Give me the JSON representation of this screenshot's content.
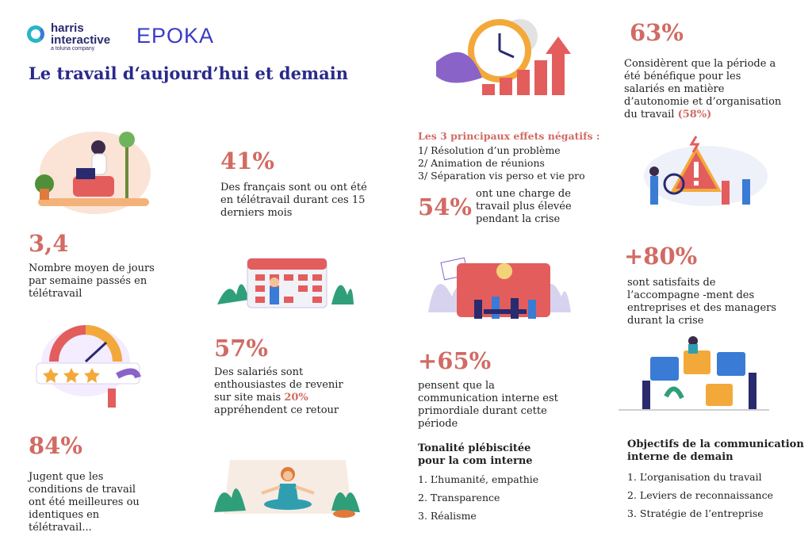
{
  "logos": {
    "harris_name_line1": "harris",
    "harris_name_line2": "interactive",
    "harris_tagline": "a toluna company",
    "epoka": "EPOKA"
  },
  "title": "Le travail d‘aujourd’hui et demain",
  "stats": {
    "remote_share": {
      "value": "41%",
      "text": "Des français sont ou ont été en télétravail durant ces 15 derniers mois"
    },
    "days_per_week": {
      "value": "3,4",
      "text": "Nombre moyen de jours par semaine passés en télétravail"
    },
    "return_enthusiasm": {
      "value": "57%",
      "text_a": "Des salariés sont enthousiastes de revenir sur site mais ",
      "highlight": "20%",
      "text_b": " appréhendent ce retour"
    },
    "conditions": {
      "value": "84%",
      "text": "Jugent que les conditions de travail ont été meilleures ou identiques en télétravail..."
    },
    "autonomy": {
      "value": "63%",
      "text": "Considèrent que la période a été bénéfique pour les salariés en matière d’autonomie et d’organisation du travail ",
      "highlight": "(58%)"
    },
    "workload": {
      "value": "54%",
      "text": "ont une charge de travail plus élevée pendant la crise"
    },
    "support": {
      "value": "+80%",
      "text": "sont satisfaits de l’accompagne -ment des entreprises et des managers durant la crise"
    },
    "communication": {
      "value": "+65%",
      "text": "pensent que la communication interne est primordiale durant cette période"
    }
  },
  "negative_effects": {
    "title": "Les 3 principaux effets négatifs :",
    "items": [
      "1/ Résolution d’un problème",
      "2/ Animation de réunions",
      "3/ Séparation vis perso et vie pro"
    ]
  },
  "tone": {
    "title_line1": "Tonalité plébiscitée",
    "title_line2": "pour la com interne",
    "items": [
      "1. L’humanité, empathie",
      "2. Transparence",
      "3. Réalisme"
    ]
  },
  "objectives": {
    "title_line1": "Objectifs de la communication",
    "title_line2": "interne de demain",
    "items": [
      "1. L’organisation du travail",
      "2. Leviers de reconnaissance",
      "3. Stratégie de l’entreprise"
    ]
  },
  "colors": {
    "accent": "#d16b63",
    "title": "#2a2a8a",
    "purple": "#8a63c9",
    "teal": "#26b7c6"
  },
  "illustrations": [
    "woman-laptop-illustration",
    "clock-growth-illustration",
    "warning-illustration",
    "calendar-illustration",
    "teamwork-illustration",
    "rating-gauge-illustration",
    "puzzle-illustration",
    "meditation-illustration"
  ]
}
